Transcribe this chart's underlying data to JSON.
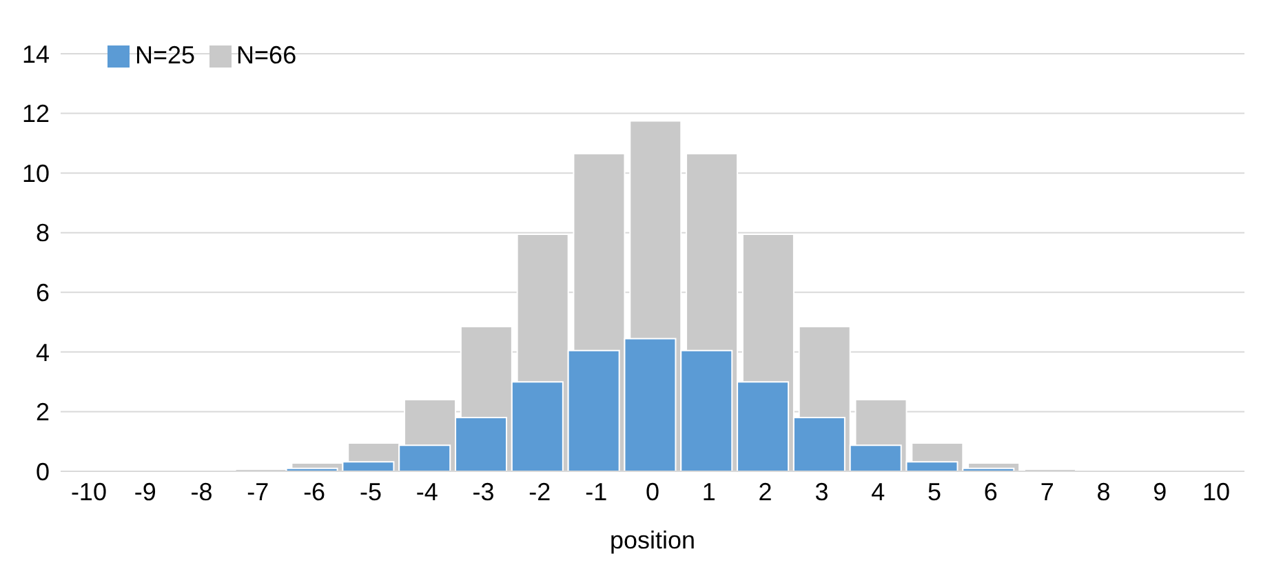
{
  "chart_data": {
    "type": "bar",
    "xlabel": "position",
    "categories": [
      "-10",
      "-9",
      "-8",
      "-7",
      "-6",
      "-5",
      "-4",
      "-3",
      "-2",
      "-1",
      "0",
      "1",
      "2",
      "3",
      "4",
      "5",
      "6",
      "7",
      "8",
      "9",
      "10"
    ],
    "series": [
      {
        "name": "N=66",
        "color": "#c9c9c9",
        "values": [
          0,
          0.02,
          0.02,
          0.07,
          0.28,
          0.95,
          2.4,
          4.85,
          7.95,
          10.65,
          11.75,
          10.65,
          7.95,
          4.85,
          2.4,
          0.95,
          0.28,
          0.07,
          0.02,
          0.02,
          0
        ]
      },
      {
        "name": "N=25",
        "color": "#5b9bd5",
        "values": [
          0,
          0,
          0,
          0,
          0.1,
          0.32,
          0.87,
          1.8,
          3.0,
          4.05,
          4.45,
          4.05,
          3.0,
          1.8,
          0.87,
          0.32,
          0.1,
          0,
          0,
          0,
          0
        ]
      }
    ],
    "ylim": [
      0,
      14
    ],
    "yticks": [
      0,
      2,
      4,
      6,
      8,
      10,
      12,
      14
    ],
    "grid": "y",
    "legend": "top left"
  }
}
